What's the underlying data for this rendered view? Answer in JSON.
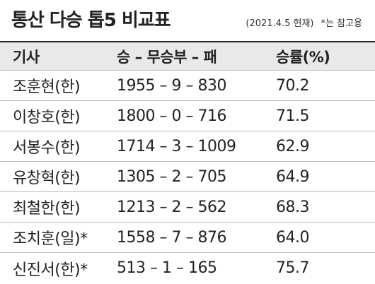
{
  "header": {
    "title": "통산 다승 톱5 비교표",
    "note": "(2021.4.5 현재)",
    "footnote": "*는 참고용"
  },
  "table": {
    "columns": [
      "기사",
      "승 – 무승부 – 패",
      "승률(%)"
    ],
    "rows": [
      [
        "조훈현(한)",
        "1955 – 9 – 830",
        "70.2"
      ],
      [
        "이창호(한)",
        "1800 – 0 – 716",
        "71.5"
      ],
      [
        "서봉수(한)",
        "1714 – 3 – 1009",
        "62.9"
      ],
      [
        "유창혁(한)",
        "1305 – 2 – 705",
        "64.9"
      ],
      [
        "최철한(한)",
        "1213 – 2 – 562",
        "68.3"
      ],
      [
        "조치훈(일)*",
        "1558 – 7 – 876",
        "64.0"
      ],
      [
        "신진서(한)*",
        "513 – 1 – 165",
        "75.7"
      ]
    ]
  }
}
